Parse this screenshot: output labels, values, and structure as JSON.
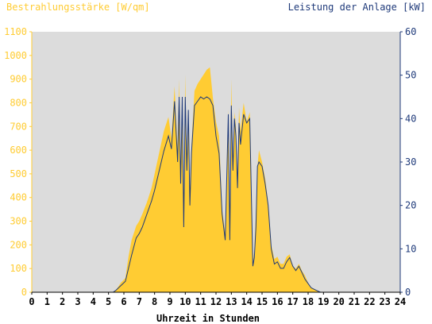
{
  "chart_data": {
    "type": "area",
    "title": "",
    "y_left_label": "Bestrahlungsstärke [W/qm]",
    "y_right_label": "Leistung der Anlage [kW]",
    "x_label": "Uhrzeit in Stunden",
    "x_range": [
      0,
      24
    ],
    "y_left_range": [
      0,
      1100
    ],
    "y_right_range": [
      0,
      60
    ],
    "x_ticks": [
      0,
      1,
      2,
      3,
      4,
      5,
      6,
      7,
      8,
      9,
      10,
      11,
      12,
      13,
      14,
      15,
      16,
      17,
      18,
      19,
      20,
      21,
      22,
      23,
      24
    ],
    "y_left_ticks": [
      0,
      100,
      200,
      300,
      400,
      500,
      600,
      700,
      800,
      900,
      1000,
      1100
    ],
    "y_right_ticks": [
      0,
      10,
      20,
      30,
      40,
      50,
      60
    ],
    "grid": false,
    "plot_background": "#dcdcdc",
    "colors": {
      "irradiance": "#ffcc33",
      "power": "#1f3a7a",
      "left_axis": "#ffcc33",
      "right_axis": "#1f3a7a"
    },
    "series": [
      {
        "name": "Bestrahlungsstärke [W/qm]",
        "axis": "left",
        "x": [
          0,
          5.3,
          5.5,
          5.8,
          6.1,
          6.3,
          6.5,
          6.8,
          7.0,
          7.2,
          7.5,
          7.8,
          8.0,
          8.3,
          8.6,
          8.9,
          9.1,
          9.3,
          9.5,
          9.6,
          9.7,
          9.8,
          9.9,
          10.0,
          10.1,
          10.2,
          10.3,
          10.4,
          10.6,
          10.8,
          11.0,
          11.2,
          11.4,
          11.6,
          11.8,
          12.0,
          12.2,
          12.4,
          12.6,
          12.8,
          12.9,
          13.0,
          13.1,
          13.2,
          13.3,
          13.4,
          13.5,
          13.6,
          13.8,
          14.0,
          14.2,
          14.4,
          14.5,
          14.6,
          14.7,
          14.8,
          15.0,
          15.2,
          15.4,
          15.6,
          15.8,
          16.0,
          16.2,
          16.4,
          16.6,
          16.8,
          17.0,
          17.2,
          17.4,
          17.6,
          17.8,
          18.0,
          18.2,
          18.5,
          18.8,
          19.1,
          19.4,
          19.7,
          20.0,
          24
        ],
        "values": [
          0,
          0,
          10,
          40,
          60,
          150,
          220,
          280,
          300,
          330,
          380,
          440,
          500,
          590,
          680,
          740,
          650,
          870,
          600,
          900,
          460,
          830,
          280,
          920,
          520,
          760,
          420,
          620,
          850,
          880,
          900,
          920,
          940,
          950,
          820,
          720,
          660,
          350,
          250,
          770,
          250,
          900,
          540,
          760,
          700,
          480,
          780,
          680,
          800,
          720,
          760,
          120,
          180,
          340,
          530,
          600,
          550,
          480,
          380,
          200,
          140,
          150,
          120,
          120,
          150,
          160,
          110,
          100,
          120,
          90,
          70,
          40,
          20,
          10,
          0,
          0,
          0,
          0,
          0,
          0
        ],
        "unit": "W/qm"
      },
      {
        "name": "Leistung der Anlage [kW]",
        "axis": "right",
        "x": [
          0,
          5.3,
          5.5,
          5.8,
          6.1,
          6.3,
          6.5,
          6.8,
          7.0,
          7.2,
          7.5,
          7.8,
          8.0,
          8.3,
          8.6,
          8.9,
          9.1,
          9.3,
          9.5,
          9.6,
          9.7,
          9.8,
          9.9,
          10.0,
          10.1,
          10.2,
          10.3,
          10.4,
          10.6,
          10.8,
          11.0,
          11.2,
          11.4,
          11.6,
          11.8,
          12.0,
          12.2,
          12.4,
          12.6,
          12.8,
          12.9,
          13.0,
          13.1,
          13.2,
          13.3,
          13.4,
          13.5,
          13.6,
          13.8,
          14.0,
          14.2,
          14.4,
          14.5,
          14.6,
          14.7,
          14.8,
          15.0,
          15.2,
          15.4,
          15.6,
          15.8,
          16.0,
          16.2,
          16.4,
          16.6,
          16.8,
          17.0,
          17.2,
          17.4,
          17.6,
          17.8,
          18.0,
          18.2,
          18.5,
          18.8,
          19.1,
          19.4,
          19.7,
          20.0,
          24
        ],
        "values": [
          0,
          0,
          0.5,
          1.5,
          2.5,
          5.5,
          8.5,
          12.5,
          13.5,
          15,
          18,
          21,
          23.5,
          28,
          32.5,
          36,
          33,
          44,
          30,
          45,
          25,
          45,
          15,
          45,
          28,
          42,
          20,
          32,
          43,
          44,
          45,
          44.5,
          45,
          44.5,
          43,
          36,
          32,
          18,
          12,
          41,
          12,
          43,
          28,
          40,
          36,
          24,
          39,
          34,
          41,
          39,
          40,
          6,
          8,
          15,
          29,
          30,
          29,
          25,
          20,
          10,
          6.5,
          7,
          5.5,
          5.5,
          7,
          8,
          6,
          5,
          6,
          4.5,
          3,
          2,
          1,
          0.5,
          0,
          0,
          0,
          0,
          0,
          0
        ],
        "unit": "kW"
      }
    ]
  }
}
